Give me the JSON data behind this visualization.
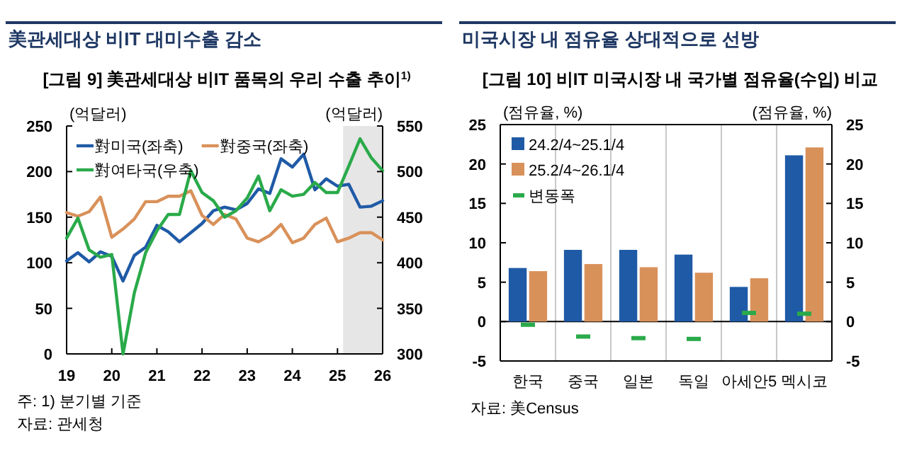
{
  "chart_data": [
    {
      "type": "line",
      "title": "美관세대상 비IT 대미수출 감소",
      "subtitle": "[그림 9] 美관세대상 비IT 품목의 우리 수출 추이$^{1)}$",
      "ylabel": "(억달러)",
      "y2label": "(억달러)",
      "x": [
        19,
        19.25,
        19.5,
        19.75,
        20,
        20.25,
        20.5,
        20.75,
        21,
        21.25,
        21.5,
        21.75,
        22,
        22.25,
        22.5,
        22.75,
        23,
        23.25,
        23.5,
        23.75,
        24,
        24.25,
        24.5,
        24.75,
        25,
        25.25,
        25.5,
        25.75,
        26
      ],
      "xlim": [
        19,
        26
      ],
      "xticks": [
        19,
        20,
        21,
        22,
        23,
        24,
        25,
        26
      ],
      "ylim": [
        0,
        250
      ],
      "yticks": [
        0,
        50,
        100,
        150,
        200,
        250
      ],
      "y2lim": [
        300,
        550
      ],
      "y2ticks": [
        300,
        350,
        400,
        450,
        500,
        550
      ],
      "series": [
        {
          "name": "對미국(좌축)",
          "color": "#1f5aa6",
          "values": [
            102,
            111,
            101,
            112,
            107,
            80,
            108,
            117,
            141,
            134,
            123,
            133,
            143,
            157,
            161,
            158,
            165,
            181,
            176,
            214,
            205,
            219,
            180,
            192,
            184,
            186,
            161,
            162,
            168
          ]
        },
        {
          "name": "對중국(좌축)",
          "color": "#d9915a",
          "values": [
            155,
            151,
            156,
            172,
            128,
            137,
            148,
            167,
            167,
            173,
            173,
            179,
            152,
            142,
            153,
            148,
            127,
            123,
            130,
            142,
            122,
            127,
            142,
            149,
            123,
            127,
            133,
            133,
            125
          ]
        },
        {
          "name": "對여타국(우축)",
          "color": "#2aaa4a",
          "axis": "y2",
          "values": [
            427,
            449,
            414,
            406,
            409,
            300,
            367,
            411,
            435,
            453,
            453,
            501,
            477,
            468,
            450,
            457,
            471,
            495,
            457,
            480,
            473,
            475,
            488,
            477,
            477,
            506,
            536,
            515,
            501
          ]
        }
      ],
      "bands": [
        {
          "axis": "x",
          "from": 25.125,
          "to": 26,
          "color": "#e6e6e6"
        }
      ],
      "legend": "top left",
      "annotations": [
        "주: 1) 분기별 기준",
        "자료: 관세청"
      ]
    },
    {
      "type": "bar",
      "title": "미국시장 내 점유율 상대적으로 선방",
      "subtitle": "[그림 10] 비IT 미국시장 내 국가별 점유율(수입) 비교",
      "ylabel": "(점유율, %)",
      "y2label": "(점유율, %)",
      "categories": [
        "한국",
        "중국",
        "일본",
        "독일",
        "아세안5",
        "멕시코"
      ],
      "ylim": [
        -5,
        25
      ],
      "yticks": [
        -5,
        0,
        5,
        10,
        15,
        20,
        25
      ],
      "y2lim": [
        -5,
        25
      ],
      "y2ticks": [
        -5,
        0,
        5,
        10,
        15,
        20,
        25
      ],
      "series": [
        {
          "name": "24.2/4~25.1/4",
          "color": "#1f5aa6",
          "values": [
            6.8,
            9.1,
            9.1,
            8.5,
            4.4,
            21.1
          ]
        },
        {
          "name": "25.2/4~26.1/4",
          "color": "#d9915a",
          "values": [
            6.4,
            7.3,
            6.9,
            6.2,
            5.5,
            22.1
          ]
        },
        {
          "name": "변동폭",
          "type": "scatter",
          "color": "#2aaa4a",
          "x": [
            "한국",
            "중국",
            "일본",
            "독일",
            "아세안5",
            "멕시코"
          ],
          "values": [
            -0.4,
            -1.9,
            -2.1,
            -2.2,
            1.1,
            1.0
          ]
        }
      ],
      "grid": "x",
      "legend": "top left",
      "annotations": [
        "자료: 美Census"
      ]
    }
  ]
}
